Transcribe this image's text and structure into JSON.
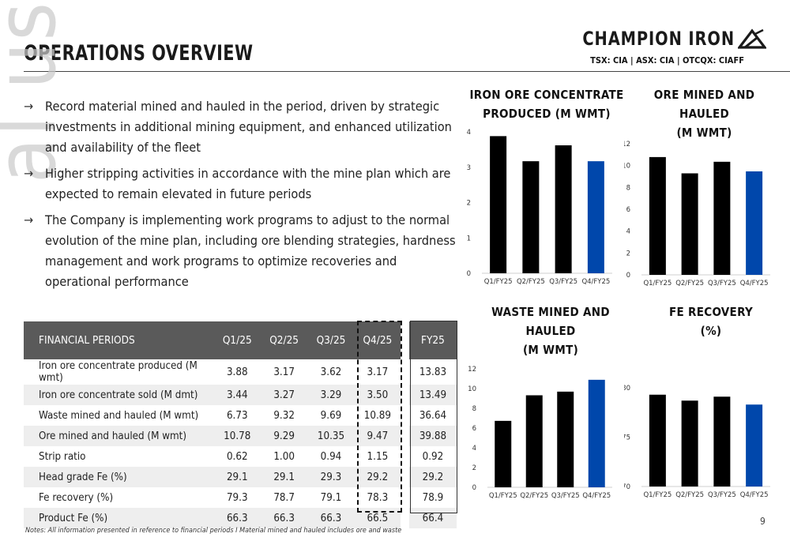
{
  "header": {
    "title": "OPERATIONS OVERVIEW",
    "company": "CHAMPION IRON",
    "tickers": "TSX: CIA | ASX: CIA | OTCQX: CIAFF"
  },
  "watermark": "al use only",
  "bullets": [
    "Record material mined and hauled in the period, driven by strategic investments in additional mining equipment, and enhanced utilization and availability of the fleet",
    "Higher stripping activities in accordance with the mine plan which are expected to remain elevated in future periods",
    "The Company is implementing work programs to adjust to the normal evolution of the mine plan, including ore blending strategies, hardness management and work programs to optimize recoveries and operational performance"
  ],
  "table": {
    "headers": [
      "FINANCIAL PERIODS",
      "Q1/25",
      "Q2/25",
      "Q3/25",
      "Q4/25",
      "FY25"
    ],
    "rows": [
      [
        "Iron ore concentrate produced (M wmt)",
        "3.88",
        "3.17",
        "3.62",
        "3.17",
        "13.83"
      ],
      [
        "Iron ore concentrate sold (M dmt)",
        "3.44",
        "3.27",
        "3.29",
        "3.50",
        "13.49"
      ],
      [
        "Waste mined and hauled (M wmt)",
        "6.73",
        "9.32",
        "9.69",
        "10.89",
        "36.64"
      ],
      [
        "Ore mined and hauled (M wmt)",
        "10.78",
        "9.29",
        "10.35",
        "9.47",
        "39.88"
      ],
      [
        "Strip ratio",
        "0.62",
        "1.00",
        "0.94",
        "1.15",
        "0.92"
      ],
      [
        "Head grade Fe (%)",
        "29.1",
        "29.1",
        "29.3",
        "29.2",
        "29.2"
      ],
      [
        "Fe recovery (%)",
        "79.3",
        "78.7",
        "79.1",
        "78.3",
        "78.9"
      ],
      [
        "Product Fe (%)",
        "66.3",
        "66.3",
        "66.3",
        "66.5",
        "66.4"
      ]
    ]
  },
  "chart_data": [
    {
      "type": "bar",
      "title": "IRON ORE CONCENTRATE PRODUCED (M WMT)",
      "categories": [
        "Q1/FY25",
        "Q2/FY25",
        "Q3/FY25",
        "Q4/FY25"
      ],
      "values": [
        3.88,
        3.17,
        3.62,
        3.17
      ],
      "ylim": [
        0,
        4
      ],
      "yticks": [
        0,
        1,
        2,
        3,
        4
      ],
      "colors": [
        "#000000",
        "#000000",
        "#000000",
        "#0047ab"
      ],
      "grid": false
    },
    {
      "type": "bar",
      "title": "ORE MINED AND HAULED (M WMT)",
      "categories": [
        "Q1/FY25",
        "Q2/FY25",
        "Q3/FY25",
        "Q4/FY25"
      ],
      "values": [
        10.78,
        9.29,
        10.35,
        9.47
      ],
      "ylim": [
        0,
        12
      ],
      "yticks": [
        0,
        2,
        4,
        6,
        8,
        10,
        12
      ],
      "colors": [
        "#000000",
        "#000000",
        "#000000",
        "#0047ab"
      ],
      "grid": false
    },
    {
      "type": "bar",
      "title": "WASTE MINED AND HAULED (M WMT)",
      "categories": [
        "Q1/FY25",
        "Q2/FY25",
        "Q3/FY25",
        "Q4/FY25"
      ],
      "values": [
        6.73,
        9.32,
        9.69,
        10.89
      ],
      "ylim": [
        0,
        12
      ],
      "yticks": [
        0,
        2,
        4,
        6,
        8,
        10,
        12
      ],
      "colors": [
        "#000000",
        "#000000",
        "#000000",
        "#0047ab"
      ],
      "grid": false
    },
    {
      "type": "bar",
      "title": "FE RECOVERY (%)",
      "categories": [
        "Q1/FY25",
        "Q2/FY25",
        "Q3/FY25",
        "Q4/FY25"
      ],
      "values": [
        79.3,
        78.7,
        79.1,
        78.3
      ],
      "ylim": [
        70,
        80
      ],
      "yticks": [
        70,
        75,
        80
      ],
      "colors": [
        "#000000",
        "#000000",
        "#000000",
        "#0047ab"
      ],
      "grid": false
    }
  ],
  "chart_titles": [
    [
      "IRON ORE CONCENTRATE",
      "PRODUCED (M WMT)"
    ],
    [
      "ORE MINED AND HAULED",
      "(M WMT)"
    ],
    [
      "WASTE MINED AND HAULED",
      "(M WMT)"
    ],
    [
      "FE RECOVERY",
      "(%)"
    ]
  ],
  "footer": {
    "note": "Notes: All information presented in reference to financial periods I Material mined and hauled includes ore and waste",
    "page": "9"
  }
}
